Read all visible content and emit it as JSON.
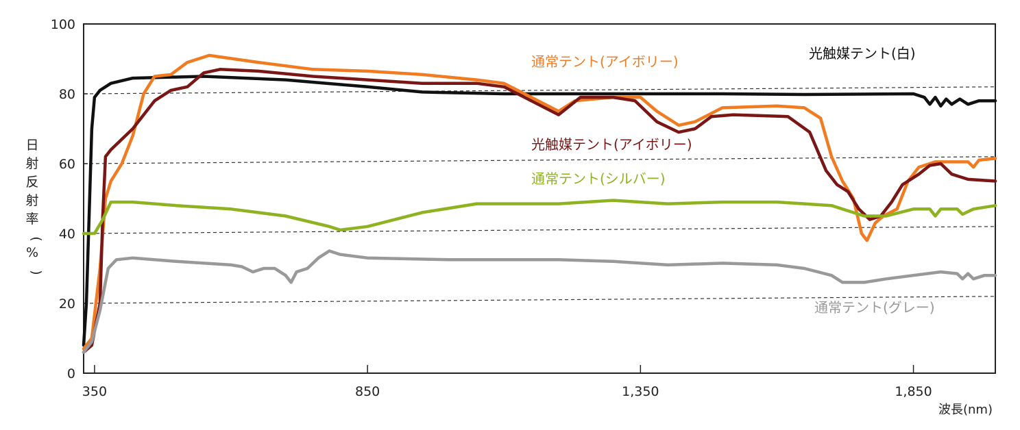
{
  "chart_data": {
    "type": "line",
    "title": "",
    "xlabel": "波長(nm)",
    "ylabel": "日射反射率(%)",
    "xlim": [
      330,
      2000
    ],
    "ylim": [
      0,
      100
    ],
    "x_ticks": [
      {
        "value": 350,
        "label": "350"
      },
      {
        "value": 850,
        "label": "850"
      },
      {
        "value": 1350,
        "label": "1,350"
      },
      {
        "value": 1850,
        "label": "1,850"
      }
    ],
    "y_ticks": [
      {
        "value": 0,
        "label": "0"
      },
      {
        "value": 20,
        "label": "20"
      },
      {
        "value": 40,
        "label": "40"
      },
      {
        "value": 60,
        "label": "60"
      },
      {
        "value": 80,
        "label": "80"
      },
      {
        "value": 100,
        "label": "100"
      }
    ],
    "guide_lines": [
      {
        "y_start": 20,
        "y_end": 22
      },
      {
        "y_start": 40,
        "y_end": 42
      },
      {
        "y_start": 60,
        "y_end": 62
      },
      {
        "y_start": 80,
        "y_end": 82
      }
    ],
    "series": [
      {
        "name": "光触媒テント(白)",
        "color": "#111111",
        "label_pos": [
          1180,
          85
        ],
        "points": [
          [
            330,
            8
          ],
          [
            335,
            20
          ],
          [
            340,
            45
          ],
          [
            345,
            70
          ],
          [
            350,
            79
          ],
          [
            360,
            81
          ],
          [
            380,
            83
          ],
          [
            420,
            84.5
          ],
          [
            550,
            85
          ],
          [
            700,
            84
          ],
          [
            850,
            82
          ],
          [
            950,
            80.5
          ],
          [
            1100,
            80
          ],
          [
            1350,
            80
          ],
          [
            1500,
            80
          ],
          [
            1650,
            79.8
          ],
          [
            1850,
            80
          ],
          [
            1870,
            79
          ],
          [
            1880,
            77
          ],
          [
            1890,
            79
          ],
          [
            1900,
            76.5
          ],
          [
            1910,
            78.5
          ],
          [
            1920,
            77
          ],
          [
            1935,
            78.5
          ],
          [
            1950,
            77
          ],
          [
            1970,
            78
          ],
          [
            2000,
            78
          ]
        ]
      },
      {
        "name": "通常テント(アイボリー)",
        "color": "#f07b20",
        "label_pos": [
          775,
          97
        ],
        "points": [
          [
            330,
            7
          ],
          [
            345,
            10
          ],
          [
            360,
            30
          ],
          [
            370,
            50
          ],
          [
            380,
            55
          ],
          [
            400,
            60
          ],
          [
            420,
            68
          ],
          [
            440,
            80
          ],
          [
            460,
            85
          ],
          [
            490,
            85.5
          ],
          [
            520,
            89
          ],
          [
            560,
            91
          ],
          [
            650,
            89
          ],
          [
            750,
            87
          ],
          [
            850,
            86.5
          ],
          [
            950,
            85.5
          ],
          [
            1050,
            84
          ],
          [
            1100,
            83
          ],
          [
            1150,
            79
          ],
          [
            1200,
            75
          ],
          [
            1230,
            78
          ],
          [
            1300,
            79
          ],
          [
            1350,
            79
          ],
          [
            1380,
            75
          ],
          [
            1420,
            71
          ],
          [
            1450,
            72
          ],
          [
            1500,
            76
          ],
          [
            1600,
            76.5
          ],
          [
            1650,
            76
          ],
          [
            1680,
            73
          ],
          [
            1700,
            62
          ],
          [
            1720,
            55
          ],
          [
            1740,
            50
          ],
          [
            1755,
            40
          ],
          [
            1765,
            38
          ],
          [
            1780,
            43
          ],
          [
            1795,
            45
          ],
          [
            1820,
            47
          ],
          [
            1840,
            55
          ],
          [
            1860,
            59
          ],
          [
            1890,
            60.5
          ],
          [
            1950,
            60.5
          ],
          [
            1960,
            59
          ],
          [
            1970,
            61
          ],
          [
            2000,
            61.5
          ]
        ]
      },
      {
        "name": "光触媒テント(アイボリー)",
        "color": "#7a1616",
        "label_pos": [
          775,
          218
        ],
        "points": [
          [
            330,
            6
          ],
          [
            345,
            8
          ],
          [
            360,
            20
          ],
          [
            365,
            45
          ],
          [
            370,
            62
          ],
          [
            380,
            64
          ],
          [
            420,
            70
          ],
          [
            460,
            78
          ],
          [
            490,
            81
          ],
          [
            520,
            82
          ],
          [
            550,
            86
          ],
          [
            580,
            87
          ],
          [
            650,
            86.5
          ],
          [
            750,
            85
          ],
          [
            850,
            84
          ],
          [
            950,
            83
          ],
          [
            1000,
            83
          ],
          [
            1050,
            83
          ],
          [
            1100,
            82
          ],
          [
            1150,
            78
          ],
          [
            1200,
            74
          ],
          [
            1240,
            79
          ],
          [
            1300,
            79
          ],
          [
            1340,
            78
          ],
          [
            1380,
            72
          ],
          [
            1420,
            69
          ],
          [
            1450,
            70
          ],
          [
            1480,
            73.5
          ],
          [
            1520,
            74
          ],
          [
            1620,
            73.5
          ],
          [
            1660,
            69
          ],
          [
            1690,
            58
          ],
          [
            1710,
            54
          ],
          [
            1730,
            52
          ],
          [
            1750,
            47
          ],
          [
            1770,
            44
          ],
          [
            1790,
            45
          ],
          [
            1810,
            49
          ],
          [
            1830,
            54
          ],
          [
            1860,
            57
          ],
          [
            1880,
            59.5
          ],
          [
            1900,
            60
          ],
          [
            1920,
            57
          ],
          [
            1950,
            55.5
          ],
          [
            2000,
            55
          ]
        ]
      },
      {
        "name": "通常テント(シルバー)",
        "color": "#8fb320",
        "label_pos": [
          775,
          268
        ],
        "points": [
          [
            330,
            40
          ],
          [
            350,
            40
          ],
          [
            365,
            44
          ],
          [
            380,
            49
          ],
          [
            420,
            49
          ],
          [
            500,
            48
          ],
          [
            600,
            47
          ],
          [
            700,
            45
          ],
          [
            780,
            42
          ],
          [
            800,
            41
          ],
          [
            850,
            42
          ],
          [
            950,
            46
          ],
          [
            1050,
            48.5
          ],
          [
            1150,
            48.5
          ],
          [
            1200,
            48.5
          ],
          [
            1300,
            49.5
          ],
          [
            1400,
            48.5
          ],
          [
            1500,
            49
          ],
          [
            1600,
            49
          ],
          [
            1650,
            48.5
          ],
          [
            1700,
            48
          ],
          [
            1740,
            46
          ],
          [
            1760,
            45
          ],
          [
            1800,
            45
          ],
          [
            1850,
            47
          ],
          [
            1880,
            47
          ],
          [
            1890,
            45
          ],
          [
            1900,
            47
          ],
          [
            1930,
            47
          ],
          [
            1940,
            45.5
          ],
          [
            1960,
            47
          ],
          [
            2000,
            48
          ]
        ]
      },
      {
        "name": "通常テント(グレー)",
        "color": "#999999",
        "label_pos": [
          1188,
          456
        ],
        "points": [
          [
            330,
            6
          ],
          [
            345,
            9
          ],
          [
            360,
            18
          ],
          [
            375,
            30
          ],
          [
            390,
            32.5
          ],
          [
            420,
            33
          ],
          [
            500,
            32
          ],
          [
            600,
            31
          ],
          [
            620,
            30.5
          ],
          [
            640,
            29
          ],
          [
            660,
            30
          ],
          [
            680,
            30
          ],
          [
            700,
            28
          ],
          [
            710,
            26
          ],
          [
            720,
            29
          ],
          [
            740,
            30
          ],
          [
            760,
            33
          ],
          [
            780,
            35
          ],
          [
            800,
            34
          ],
          [
            850,
            33
          ],
          [
            1000,
            32.5
          ],
          [
            1100,
            32.5
          ],
          [
            1200,
            32.5
          ],
          [
            1300,
            32
          ],
          [
            1400,
            31
          ],
          [
            1500,
            31.5
          ],
          [
            1600,
            31
          ],
          [
            1650,
            30
          ],
          [
            1700,
            28
          ],
          [
            1720,
            26
          ],
          [
            1760,
            26
          ],
          [
            1800,
            27
          ],
          [
            1850,
            28
          ],
          [
            1900,
            29
          ],
          [
            1930,
            28.5
          ],
          [
            1940,
            27
          ],
          [
            1950,
            28.5
          ],
          [
            1960,
            27
          ],
          [
            1980,
            28
          ],
          [
            2000,
            28
          ]
        ]
      }
    ]
  }
}
